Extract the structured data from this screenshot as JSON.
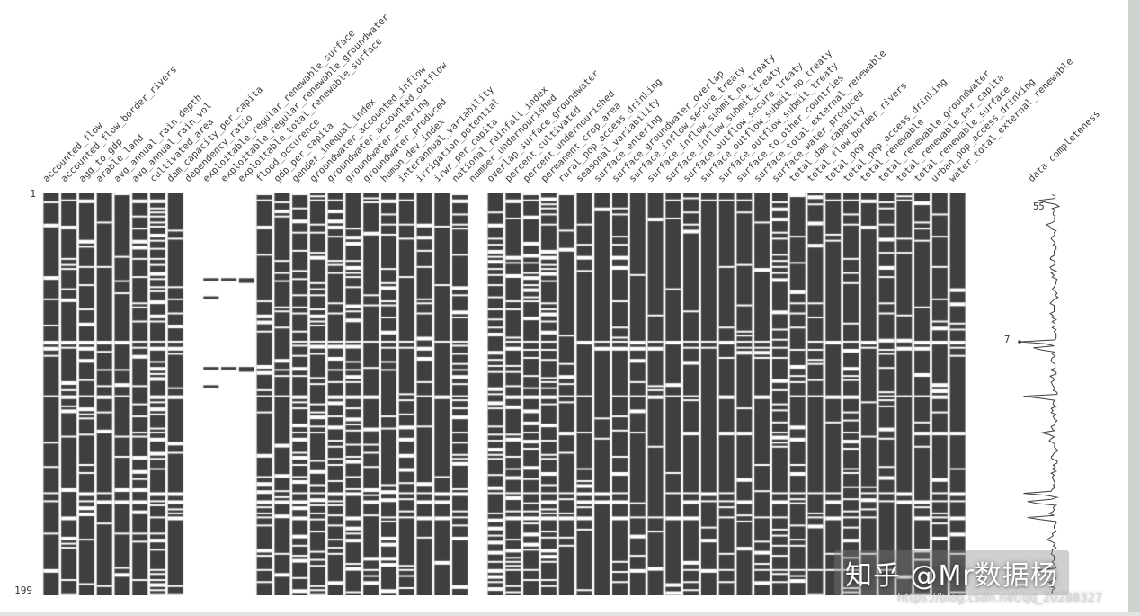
{
  "figure": {
    "top_row_label": "1",
    "bottom_row_label": "199",
    "sparkline_min_label": "7",
    "sparkline_max_label": "55",
    "completeness_label": "data completeness"
  },
  "watermark": {
    "text": "知乎 @Mr数据杨",
    "url": "https://blog.csdn.net/qq_20288327"
  },
  "chart_data": {
    "type": "heatmap",
    "subtype": "missingno-missing-data-matrix",
    "n_rows": 199,
    "row_axis_labels": [
      "1",
      "199"
    ],
    "row_completeness_range": [
      7,
      55
    ],
    "bar_color": "#3f3f3f",
    "background": "#ffffff",
    "legend_position": "none",
    "grid": false,
    "sparkline_label": "data completeness",
    "common_missing_rows": [
      {
        "row": 3,
        "prob": 0.5
      },
      {
        "row": 73,
        "prob": 0.92
      },
      {
        "row": 76,
        "prob": 0.6
      },
      {
        "row": 100,
        "prob": 0.78
      },
      {
        "row": 118,
        "prob": 0.45
      },
      {
        "row": 148,
        "prob": 0.8
      },
      {
        "row": 152,
        "prob": 0.6
      },
      {
        "row": 160,
        "prob": 0.7
      },
      {
        "row": 186,
        "prob": 0.5
      }
    ],
    "columns": [
      {
        "name": "accounted_flow",
        "missing_pct": 0.1
      },
      {
        "name": "accounted_flow_border_rivers",
        "missing_pct": 0.14
      },
      {
        "name": "agg_to_gdp",
        "missing_pct": 0.18
      },
      {
        "name": "arable_land",
        "missing_pct": 0.07
      },
      {
        "name": "avg_annual_rain_depth",
        "missing_pct": 0.16
      },
      {
        "name": "avg_annual_rain_vol",
        "missing_pct": 0.16
      },
      {
        "name": "cultivated_area",
        "missing_pct": 0.32
      },
      {
        "name": "dam_capacity_per_capita",
        "missing_pct": 0.06
      },
      {
        "name": "dependency_ratio",
        "present_rows": []
      },
      {
        "name": "exploitable_regular_renewable_surface",
        "present_rows": [
          42,
          51,
          86,
          95
        ]
      },
      {
        "name": "exploitable_regular_renewable_groundwater",
        "present_rows": [
          42,
          86
        ]
      },
      {
        "name": "exploitable_total_renewable_surface",
        "present_rows": [
          42,
          43,
          86,
          87
        ]
      },
      {
        "name": "flood_occurence",
        "missing_pct": 0.22
      },
      {
        "name": "gdp_per_capita",
        "missing_pct": 0.12
      },
      {
        "name": "gender_inequal_index",
        "missing_pct": 0.25
      },
      {
        "name": "groundwater_accounted_inflow",
        "missing_pct": 0.3
      },
      {
        "name": "groundwater_accounted_outflow",
        "missing_pct": 0.28
      },
      {
        "name": "groundwater_entering",
        "missing_pct": 0.34
      },
      {
        "name": "groundwater_produced",
        "missing_pct": 0.12
      },
      {
        "name": "human_dev_index",
        "missing_pct": 0.18
      },
      {
        "name": "interannual_variability",
        "missing_pct": 0.1
      },
      {
        "name": "irrigation_potential",
        "missing_pct": 0.15
      },
      {
        "name": "irwr_per_capita",
        "missing_pct": 0.06
      },
      {
        "name": "national_rainfall_index",
        "missing_pct": 0.3
      },
      {
        "name": "number_undernourished",
        "present_rows": []
      },
      {
        "name": "overlap_surface_groundwater",
        "missing_pct": 0.38
      },
      {
        "name": "percent_cultivated",
        "missing_pct": 0.22
      },
      {
        "name": "percent_undernourished",
        "missing_pct": 0.3
      },
      {
        "name": "permanent_crop_area",
        "missing_pct": 0.34
      },
      {
        "name": "rural_pop_access_drinking",
        "missing_pct": 0.1
      },
      {
        "name": "seasonal_variability",
        "missing_pct": 0.08
      },
      {
        "name": "surface_entering",
        "missing_pct": 0.06
      },
      {
        "name": "surface_groundwater_overlap",
        "missing_pct": 0.1
      },
      {
        "name": "surface_inflow_secure_treaty",
        "missing_pct": 0.05
      },
      {
        "name": "surface_inflow_submit_no_treaty",
        "missing_pct": 0.06
      },
      {
        "name": "surface_inflow_submit_treaty",
        "missing_pct": 0.05
      },
      {
        "name": "surface_outflow_secure_treaty",
        "missing_pct": 0.06
      },
      {
        "name": "surface_outflow_submit_no_treaty",
        "missing_pct": 0.05
      },
      {
        "name": "surface_outflow_submit_treaty",
        "missing_pct": 0.06
      },
      {
        "name": "surface_to_other_countries",
        "missing_pct": 0.12
      },
      {
        "name": "surface_total_external_renewable",
        "missing_pct": 0.08
      },
      {
        "name": "surface_water_produced",
        "missing_pct": 0.25
      },
      {
        "name": "total_dam_capacity",
        "missing_pct": 0.18
      },
      {
        "name": "total_flow_border_rivers",
        "missing_pct": 0.1
      },
      {
        "name": "total_pop",
        "missing_pct": 0.03
      },
      {
        "name": "total_pop_access_drinking",
        "missing_pct": 0.2
      },
      {
        "name": "total_renewable",
        "missing_pct": 0.04
      },
      {
        "name": "total_renewable_groundwater",
        "missing_pct": 0.12
      },
      {
        "name": "total_renewable_per_capita",
        "missing_pct": 0.05
      },
      {
        "name": "total_renewable_surface",
        "missing_pct": 0.06
      },
      {
        "name": "urban_pop_access_drinking",
        "missing_pct": 0.15
      },
      {
        "name": "water_total_external_renewable",
        "missing_pct": 0.08
      }
    ]
  }
}
